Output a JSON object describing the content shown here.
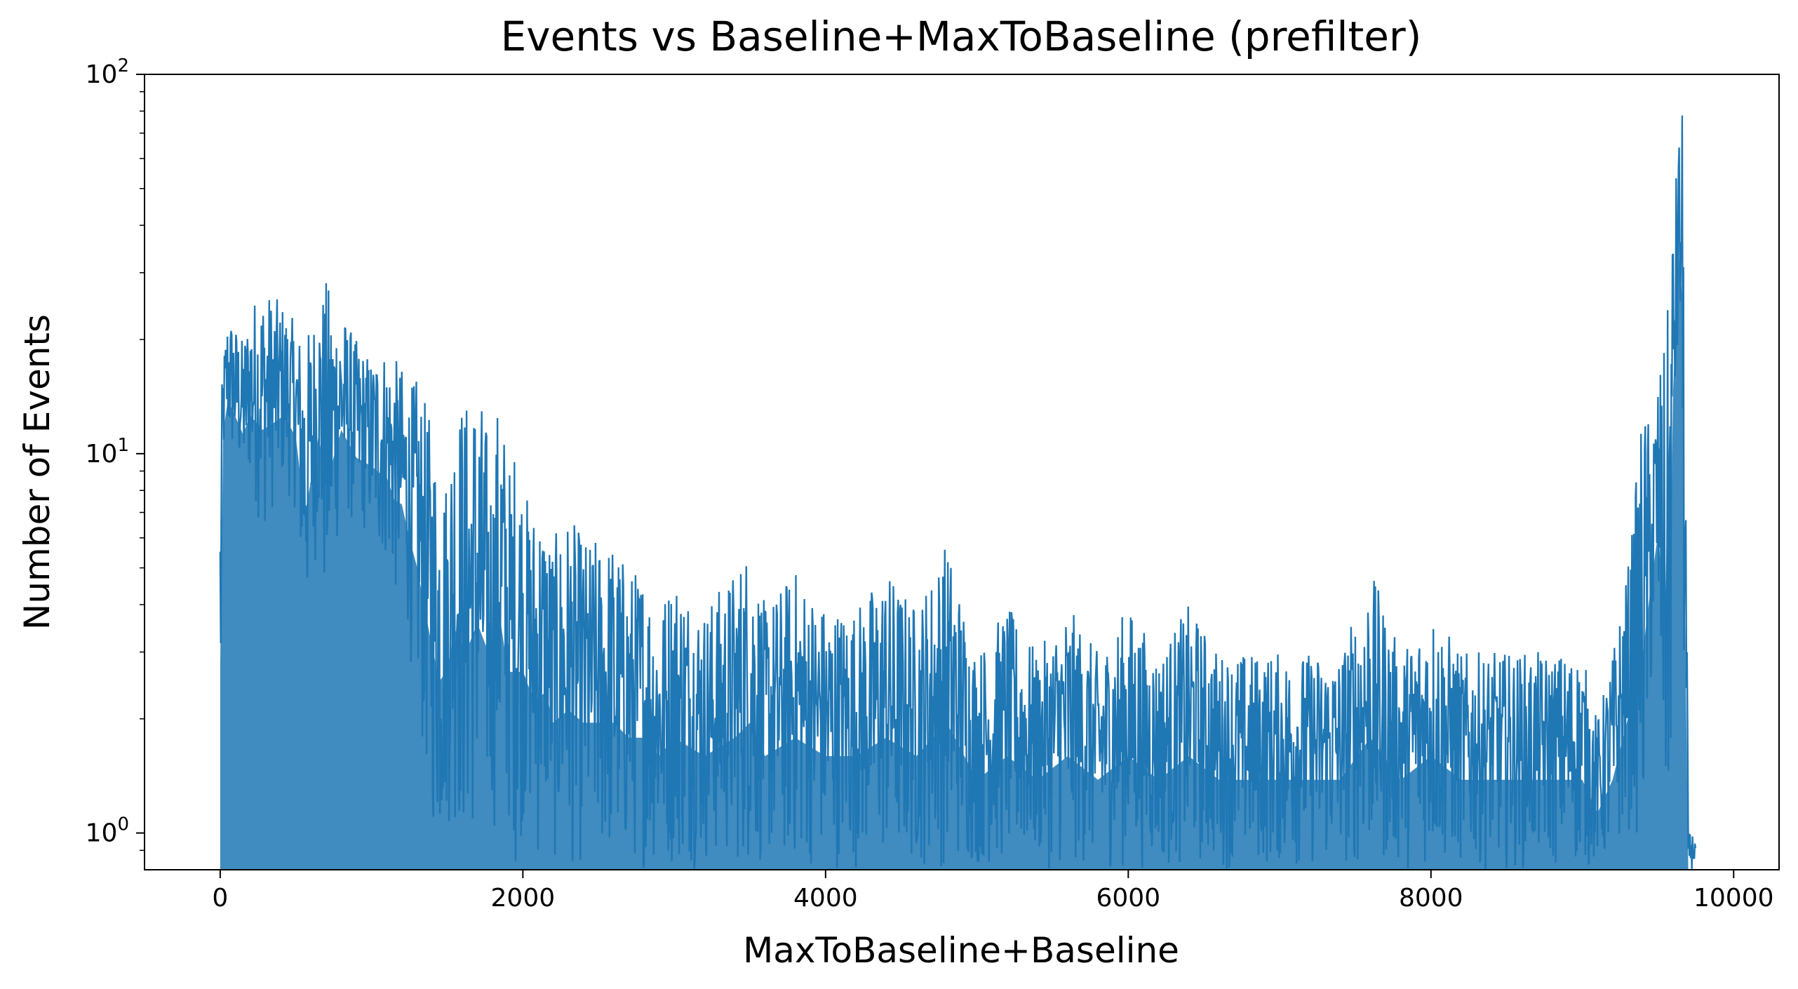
{
  "chart_data": {
    "type": "line",
    "title": "Events vs Baseline+MaxToBaseline (prefilter)",
    "xlabel": "MaxToBaseline+Baseline",
    "ylabel": "Number of Events",
    "xlim": [
      -500,
      10300
    ],
    "ylim": [
      0.8,
      100
    ],
    "yscale": "log",
    "grid": false,
    "line_color": "#1f77b4",
    "x_ticks": [
      {
        "value": 0,
        "label": "0"
      },
      {
        "value": 2000,
        "label": "2000"
      },
      {
        "value": 4000,
        "label": "4000"
      },
      {
        "value": 6000,
        "label": "6000"
      },
      {
        "value": 8000,
        "label": "8000"
      },
      {
        "value": 10000,
        "label": "10000"
      }
    ],
    "y_ticks": [
      {
        "value": 1,
        "base": "10",
        "exp": "0"
      },
      {
        "value": 10,
        "base": "10",
        "exp": "1"
      },
      {
        "value": 100,
        "base": "10",
        "exp": "2"
      }
    ],
    "envelope_series": {
      "name": "",
      "note_upper_lower": "approximate per-bin histogram envelope read from the plot (x in data units, counts)",
      "points": [
        [
          0,
          12,
          0.8
        ],
        [
          20,
          18,
          9
        ],
        [
          50,
          24,
          10
        ],
        [
          100,
          22,
          9
        ],
        [
          150,
          20,
          8
        ],
        [
          200,
          25,
          8
        ],
        [
          280,
          28,
          6
        ],
        [
          350,
          26,
          7
        ],
        [
          420,
          25,
          8
        ],
        [
          500,
          22,
          7
        ],
        [
          560,
          20,
          3
        ],
        [
          650,
          26,
          6
        ],
        [
          700,
          29,
          3
        ],
        [
          800,
          24,
          7
        ],
        [
          900,
          20,
          6
        ],
        [
          1000,
          18,
          6
        ],
        [
          1050,
          20,
          5
        ],
        [
          1100,
          19,
          5
        ],
        [
          1150,
          18,
          4
        ],
        [
          1200,
          17,
          4
        ],
        [
          1250,
          15,
          3
        ],
        [
          1300,
          16,
          2
        ],
        [
          1400,
          12,
          1
        ],
        [
          1450,
          10,
          0.8
        ],
        [
          1500,
          9,
          1
        ],
        [
          1550,
          15,
          1
        ],
        [
          1620,
          14,
          0.8
        ],
        [
          1700,
          16,
          1
        ],
        [
          1760,
          12,
          1
        ],
        [
          1800,
          9,
          1
        ],
        [
          1850,
          17,
          1
        ],
        [
          1900,
          9,
          1
        ],
        [
          1950,
          11,
          0.8
        ],
        [
          2000,
          9,
          1
        ],
        [
          2050,
          7,
          1
        ],
        [
          2100,
          8,
          0.8
        ],
        [
          2150,
          7,
          1
        ],
        [
          2200,
          6,
          0.8
        ],
        [
          2300,
          7,
          0.8
        ],
        [
          2400,
          6,
          0.8
        ],
        [
          2500,
          6,
          0.8
        ],
        [
          2600,
          6,
          0.8
        ],
        [
          2700,
          5,
          0.8
        ],
        [
          2800,
          5,
          0.8
        ],
        [
          2900,
          4,
          0.8
        ],
        [
          3000,
          5,
          0.8
        ],
        [
          3200,
          4,
          0.8
        ],
        [
          3400,
          5,
          0.8
        ],
        [
          3500,
          6,
          0.8
        ],
        [
          3600,
          4,
          0.8
        ],
        [
          3800,
          5,
          0.8
        ],
        [
          4000,
          4,
          0.8
        ],
        [
          4200,
          4,
          0.8
        ],
        [
          4400,
          5,
          0.8
        ],
        [
          4600,
          4,
          0.8
        ],
        [
          4800,
          6,
          0.8
        ],
        [
          5000,
          3,
          0.8
        ],
        [
          5200,
          4,
          0.8
        ],
        [
          5400,
          3,
          0.8
        ],
        [
          5600,
          4,
          0.8
        ],
        [
          5800,
          3,
          0.8
        ],
        [
          6000,
          4,
          0.8
        ],
        [
          6200,
          3,
          0.8
        ],
        [
          6400,
          4,
          0.8
        ],
        [
          6600,
          3,
          0.8
        ],
        [
          6800,
          3,
          0.8
        ],
        [
          7000,
          3,
          0.8
        ],
        [
          7200,
          3,
          0.8
        ],
        [
          7400,
          3,
          0.8
        ],
        [
          7600,
          5,
          0.8
        ],
        [
          7800,
          3,
          0.8
        ],
        [
          8000,
          4,
          0.8
        ],
        [
          8200,
          3,
          0.8
        ],
        [
          8400,
          3,
          0.8
        ],
        [
          8600,
          3,
          0.8
        ],
        [
          8800,
          3,
          0.8
        ],
        [
          9000,
          3,
          0.8
        ],
        [
          9100,
          2,
          0.8
        ],
        [
          9200,
          3,
          0.8
        ],
        [
          9300,
          5,
          1
        ],
        [
          9350,
          8,
          1
        ],
        [
          9400,
          14,
          0.8
        ],
        [
          9450,
          12,
          2
        ],
        [
          9500,
          16,
          3
        ],
        [
          9550,
          20,
          0.8
        ],
        [
          9580,
          30,
          0.8
        ],
        [
          9600,
          45,
          6
        ],
        [
          9620,
          55,
          12
        ],
        [
          9640,
          70,
          20
        ],
        [
          9660,
          82,
          10
        ],
        [
          9680,
          18,
          0.8
        ],
        [
          9700,
          1,
          0.8
        ],
        [
          9750,
          1,
          0.8
        ]
      ]
    }
  }
}
